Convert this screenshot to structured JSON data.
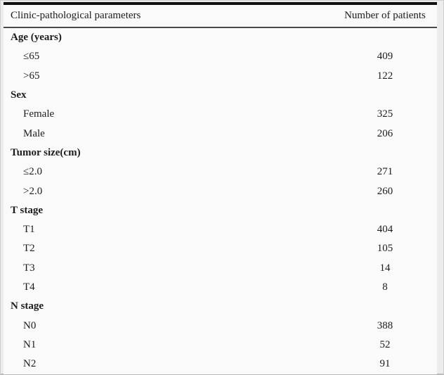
{
  "table": {
    "header": {
      "parameter_label": "Clinic-pathological parameters",
      "count_label": "Number of patients"
    },
    "rows": [
      {
        "label": "Age (years)",
        "value": "",
        "type": "group"
      },
      {
        "label": "≤65",
        "value": "409",
        "type": "item"
      },
      {
        "label": ">65",
        "value": "122",
        "type": "item"
      },
      {
        "label": "Sex",
        "value": "",
        "type": "group"
      },
      {
        "label": "Female",
        "value": "325",
        "type": "item"
      },
      {
        "label": "Male",
        "value": "206",
        "type": "item"
      },
      {
        "label": "Tumor size(cm)",
        "value": "",
        "type": "group"
      },
      {
        "label": "≤2.0",
        "value": "271",
        "type": "item"
      },
      {
        "label": ">2.0",
        "value": "260",
        "type": "item"
      },
      {
        "label": "T stage",
        "value": "",
        "type": "group"
      },
      {
        "label": "T1",
        "value": "404",
        "type": "item"
      },
      {
        "label": "T2",
        "value": "105",
        "type": "item"
      },
      {
        "label": "T3",
        "value": "14",
        "type": "item"
      },
      {
        "label": "T4",
        "value": "8",
        "type": "item"
      },
      {
        "label": "N stage",
        "value": "",
        "type": "group"
      },
      {
        "label": "N0",
        "value": "388",
        "type": "item"
      },
      {
        "label": "N1",
        "value": "52",
        "type": "item"
      },
      {
        "label": "N2",
        "value": "91",
        "type": "item"
      }
    ]
  },
  "chart_data": {
    "type": "table",
    "title": "Clinic-pathological parameters",
    "columns": [
      "Clinic-pathological parameters",
      "Number of patients"
    ],
    "groups": [
      {
        "name": "Age (years)",
        "categories": [
          "≤65",
          ">65"
        ],
        "values": [
          409,
          122
        ]
      },
      {
        "name": "Sex",
        "categories": [
          "Female",
          "Male"
        ],
        "values": [
          325,
          206
        ]
      },
      {
        "name": "Tumor size(cm)",
        "categories": [
          "≤2.0",
          ">2.0"
        ],
        "values": [
          271,
          260
        ]
      },
      {
        "name": "T stage",
        "categories": [
          "T1",
          "T2",
          "T3",
          "T4"
        ],
        "values": [
          404,
          105,
          14,
          8
        ]
      },
      {
        "name": "N stage",
        "categories": [
          "N0",
          "N1",
          "N2"
        ],
        "values": [
          388,
          52,
          91
        ]
      }
    ]
  },
  "colors": {
    "page_background": "#ececec",
    "table_background": "#fafafa",
    "text": "#1c1c1c",
    "top_rule": "#111111",
    "header_rule": "#4a4a4a"
  }
}
